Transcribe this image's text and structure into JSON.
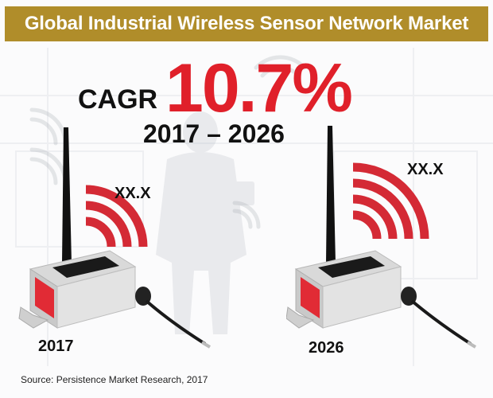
{
  "title": "Global Industrial Wireless Sensor Network Market",
  "cagr": {
    "label": "CAGR",
    "value": "10.7%",
    "period": "2017 – 2026"
  },
  "devices": [
    {
      "year": "2017",
      "value": "XX.X"
    },
    {
      "year": "2026",
      "value": "XX.X"
    }
  ],
  "source": "Source: Persistence Market Research, 2017",
  "colors": {
    "title_bar": "#b08d2a",
    "accent_red": "#e0202a",
    "signal_red": "#d42a35"
  }
}
